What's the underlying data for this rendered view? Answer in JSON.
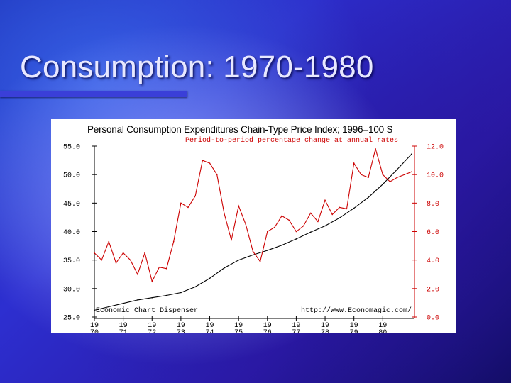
{
  "slide": {
    "title": "Consumption: 1970-1980"
  },
  "chart_data": {
    "type": "line",
    "title": "Personal Consumption Expenditures Chain-Type Price Index; 1996=100 S",
    "subtitle": "Period-to-period percentage change at annual rates",
    "footer_left": "Economic Chart Dispenser",
    "footer_right": "http://www.Economagic.com/",
    "left_axis": {
      "min": 25,
      "max": 55,
      "ticks": [
        "55.0",
        "50.0",
        "45.0",
        "40.0",
        "35.0",
        "30.0",
        "25.0"
      ]
    },
    "right_axis": {
      "min": 0,
      "max": 12,
      "ticks": [
        "12.0",
        "10.0",
        "8.0",
        "6.0",
        "4.0",
        "2.0",
        "0.0"
      ]
    },
    "x_ticks": [
      {
        "top": "19",
        "bottom": "70",
        "value": 1970.0
      },
      {
        "top": "19",
        "bottom": "71",
        "value": 1971.0
      },
      {
        "top": "19",
        "bottom": "72",
        "value": 1972.0
      },
      {
        "top": "19",
        "bottom": "73",
        "value": 1973.0
      },
      {
        "top": "19",
        "bottom": "74",
        "value": 1974.0
      },
      {
        "top": "19",
        "bottom": "75",
        "value": 1975.0
      },
      {
        "top": "19",
        "bottom": "76",
        "value": 1976.0
      },
      {
        "top": "19",
        "bottom": "77",
        "value": 1977.0
      },
      {
        "top": "19",
        "bottom": "78",
        "value": 1978.0
      },
      {
        "top": "19",
        "bottom": "79",
        "value": 1979.0
      },
      {
        "top": "19",
        "bottom": "80",
        "value": 1980.0
      }
    ],
    "x_range": [
      1970.0,
      1981.1
    ],
    "series": [
      {
        "axis": "left",
        "color": "#000000",
        "x": [
          1970.0,
          1970.5,
          1971.0,
          1971.5,
          1972.0,
          1972.5,
          1973.0,
          1973.5,
          1974.0,
          1974.5,
          1975.0,
          1975.5,
          1976.0,
          1976.5,
          1977.0,
          1977.5,
          1978.0,
          1978.5,
          1979.0,
          1979.5,
          1980.0,
          1980.5,
          1981.0
        ],
        "values": [
          26.2,
          26.8,
          27.4,
          28.0,
          28.4,
          28.8,
          29.3,
          30.3,
          31.8,
          33.6,
          35.0,
          35.9,
          36.7,
          37.6,
          38.7,
          39.9,
          41.0,
          42.4,
          44.1,
          46.0,
          48.3,
          50.9,
          53.6
        ]
      },
      {
        "axis": "right",
        "color": "#cc0000",
        "x": [
          1970.0,
          1970.25,
          1970.5,
          1970.75,
          1971.0,
          1971.25,
          1971.5,
          1971.75,
          1972.0,
          1972.25,
          1972.5,
          1972.75,
          1973.0,
          1973.25,
          1973.5,
          1973.75,
          1974.0,
          1974.25,
          1974.5,
          1974.75,
          1975.0,
          1975.25,
          1975.5,
          1975.75,
          1976.0,
          1976.25,
          1976.5,
          1976.75,
          1977.0,
          1977.25,
          1977.5,
          1977.75,
          1978.0,
          1978.25,
          1978.5,
          1978.75,
          1979.0,
          1979.25,
          1979.5,
          1979.75,
          1980.0,
          1980.25,
          1980.5,
          1980.75,
          1981.0
        ],
        "values": [
          4.5,
          4.0,
          5.3,
          3.8,
          4.5,
          4.0,
          3.0,
          4.5,
          2.5,
          3.5,
          3.4,
          5.3,
          8.0,
          7.7,
          8.5,
          11.0,
          10.8,
          10.0,
          7.3,
          5.4,
          7.8,
          6.5,
          4.6,
          3.9,
          6.0,
          6.3,
          7.1,
          6.8,
          6.0,
          6.4,
          7.3,
          6.7,
          8.2,
          7.2,
          7.7,
          7.6,
          10.8,
          10.0,
          9.8,
          11.8,
          10.0,
          9.5,
          9.8,
          10.0,
          10.2
        ]
      }
    ],
    "grid": false
  }
}
